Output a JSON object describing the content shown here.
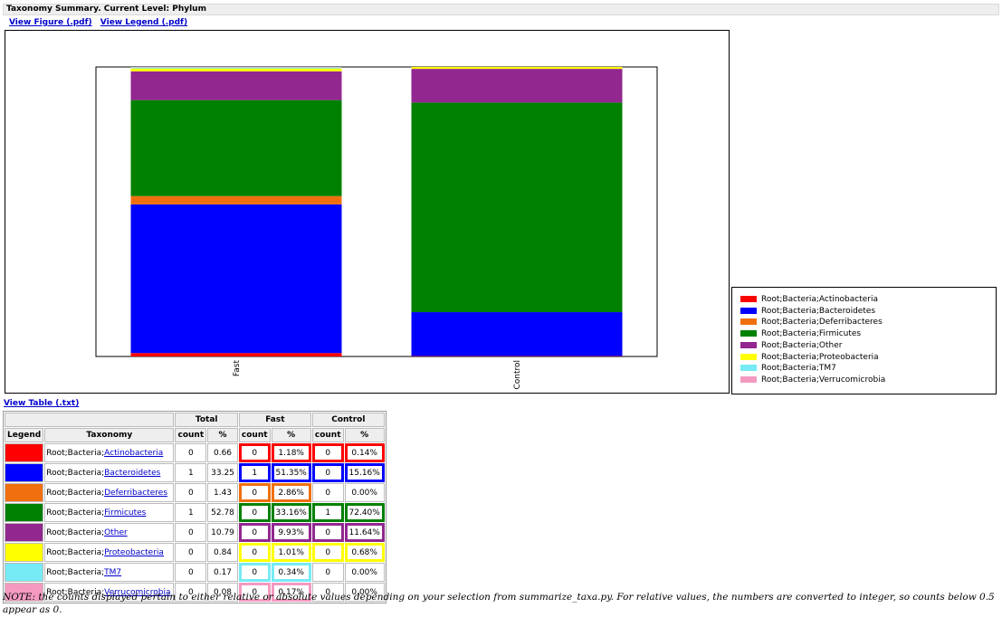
{
  "header": {
    "title": "Taxonomy Summary. Current Level: Phylum",
    "links": [
      "View Figure (.pdf)",
      "View Legend (.pdf)"
    ],
    "table_link": "View Table (.txt)"
  },
  "chart_data": {
    "type": "bar",
    "stacked": true,
    "categories": [
      "Fast",
      "Control"
    ],
    "series": [
      {
        "name": "Root;Bacteria;Actinobacteria",
        "color": "#ff0000",
        "values": [
          1.18,
          0.14
        ]
      },
      {
        "name": "Root;Bacteria;Bacteroidetes",
        "color": "#0000ff",
        "values": [
          51.35,
          15.16
        ]
      },
      {
        "name": "Root;Bacteria;Deferribacteres",
        "color": "#f07010",
        "values": [
          2.86,
          0.0
        ]
      },
      {
        "name": "Root;Bacteria;Firmicutes",
        "color": "#008000",
        "values": [
          33.16,
          72.4
        ]
      },
      {
        "name": "Root;Bacteria;Other",
        "color": "#91278f",
        "values": [
          9.93,
          11.64
        ]
      },
      {
        "name": "Root;Bacteria;Proteobacteria",
        "color": "#ffff00",
        "values": [
          1.01,
          0.68
        ]
      },
      {
        "name": "Root;Bacteria;TM7",
        "color": "#76eaf5",
        "values": [
          0.34,
          0.0
        ]
      },
      {
        "name": "Root;Bacteria;Verrucomicrobia",
        "color": "#f49ac1",
        "values": [
          0.17,
          0.0
        ]
      }
    ],
    "ylim": [
      0,
      100
    ],
    "legend_placement": "right, below plot",
    "grid": false
  },
  "table": {
    "group_headers": [
      "Total",
      "Fast",
      "Control"
    ],
    "sub_headers": [
      "Legend",
      "Taxonomy",
      "count",
      "%",
      "count",
      "%",
      "count",
      "%"
    ],
    "rows": [
      {
        "prefix": "Root;Bacteria;",
        "taxon": "Actinobacteria",
        "color": "#ff0000",
        "total_count": "0",
        "total_pct": "0.66",
        "fast_count": "0",
        "fast_pct": "1.18%",
        "control_count": "0",
        "control_pct": "0.14%",
        "fast_hl": true,
        "control_hl": true
      },
      {
        "prefix": "Root;Bacteria;",
        "taxon": "Bacteroidetes",
        "color": "#0000ff",
        "total_count": "1",
        "total_pct": "33.25",
        "fast_count": "1",
        "fast_pct": "51.35%",
        "control_count": "0",
        "control_pct": "15.16%",
        "fast_hl": true,
        "control_hl": true
      },
      {
        "prefix": "Root;Bacteria;",
        "taxon": "Deferribacteres",
        "color": "#f07010",
        "total_count": "0",
        "total_pct": "1.43",
        "fast_count": "0",
        "fast_pct": "2.86%",
        "control_count": "0",
        "control_pct": "0.00%",
        "fast_hl": true,
        "control_hl": false
      },
      {
        "prefix": "Root;Bacteria;",
        "taxon": "Firmicutes",
        "color": "#008000",
        "total_count": "1",
        "total_pct": "52.78",
        "fast_count": "0",
        "fast_pct": "33.16%",
        "control_count": "1",
        "control_pct": "72.40%",
        "fast_hl": true,
        "control_hl": true
      },
      {
        "prefix": "Root;Bacteria;",
        "taxon": "Other",
        "color": "#91278f",
        "total_count": "0",
        "total_pct": "10.79",
        "fast_count": "0",
        "fast_pct": "9.93%",
        "control_count": "0",
        "control_pct": "11.64%",
        "fast_hl": true,
        "control_hl": true
      },
      {
        "prefix": "Root;Bacteria;",
        "taxon": "Proteobacteria",
        "color": "#ffff00",
        "total_count": "0",
        "total_pct": "0.84",
        "fast_count": "0",
        "fast_pct": "1.01%",
        "control_count": "0",
        "control_pct": "0.68%",
        "fast_hl": true,
        "control_hl": true
      },
      {
        "prefix": "Root;Bacteria;",
        "taxon": "TM7",
        "color": "#76eaf5",
        "total_count": "0",
        "total_pct": "0.17",
        "fast_count": "0",
        "fast_pct": "0.34%",
        "control_count": "0",
        "control_pct": "0.00%",
        "fast_hl": true,
        "control_hl": false
      },
      {
        "prefix": "Root;Bacteria;",
        "taxon": "Verrucomicrobia",
        "color": "#f49ac1",
        "total_count": "0",
        "total_pct": "0.08",
        "fast_count": "0",
        "fast_pct": "0.17%",
        "control_count": "0",
        "control_pct": "0.00%",
        "fast_hl": true,
        "control_hl": false
      }
    ]
  },
  "note": "NOTE: the counts displayed pertain to either relative or absolute values depending on your selection from summarize_taxa.py. For relative values, the numbers are converted to integer, so counts below 0.5 appear as 0."
}
